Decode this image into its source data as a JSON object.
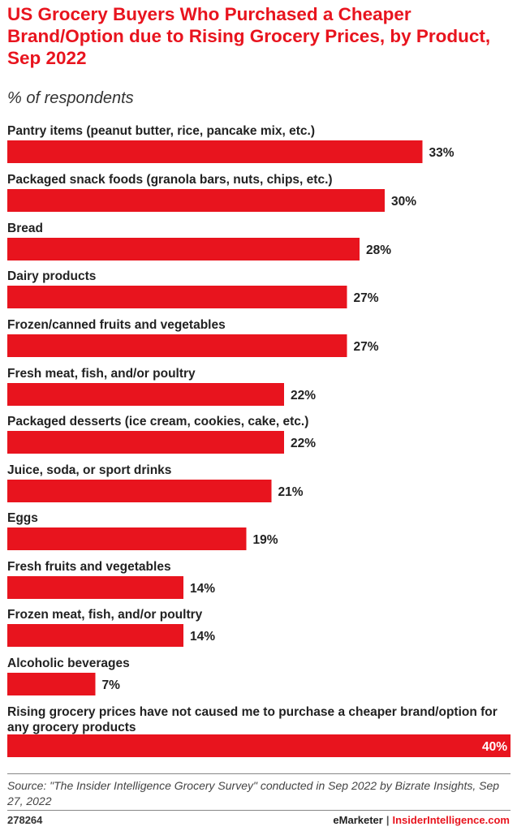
{
  "header": {
    "title": "US Grocery Buyers Who Purchased a Cheaper Brand/Option due to Rising Grocery Prices, by Product, Sep 2022",
    "subtitle": "% of respondents"
  },
  "chart_data": {
    "type": "bar",
    "orientation": "horizontal",
    "categories": [
      "Pantry items (peanut butter, rice, pancake mix, etc.)",
      "Packaged snack foods (granola bars, nuts, chips, etc.)",
      "Bread",
      "Dairy products",
      "Frozen/canned fruits and vegetables",
      "Fresh meat, fish, and/or poultry",
      "Packaged desserts (ice cream, cookies, cake, etc.)",
      "Juice, soda, or sport drinks",
      "Eggs",
      "Fresh fruits and vegetables",
      "Frozen meat, fish, and/or poultry",
      "Alcoholic beverages",
      "Rising grocery prices have not caused me to purchase a cheaper brand/option for any grocery products"
    ],
    "values": [
      33,
      30,
      28,
      27,
      27,
      22,
      22,
      21,
      19,
      14,
      14,
      7,
      40
    ],
    "value_labels": [
      "33%",
      "30%",
      "28%",
      "27%",
      "27%",
      "22%",
      "22%",
      "21%",
      "19%",
      "14%",
      "14%",
      "7%",
      "40%"
    ],
    "unit": "%",
    "xlim": [
      0,
      40
    ],
    "bar_color": "#e8141e",
    "grid": false,
    "legend": "none"
  },
  "footer": {
    "source": "Source: \"The Insider Intelligence Grocery Survey\" conducted in Sep 2022 by Bizrate Insights, Sep 27, 2022",
    "chart_id": "278264",
    "brand_left": "eMarketer",
    "brand_sep": "|",
    "brand_right": "InsiderIntelligence.com"
  }
}
